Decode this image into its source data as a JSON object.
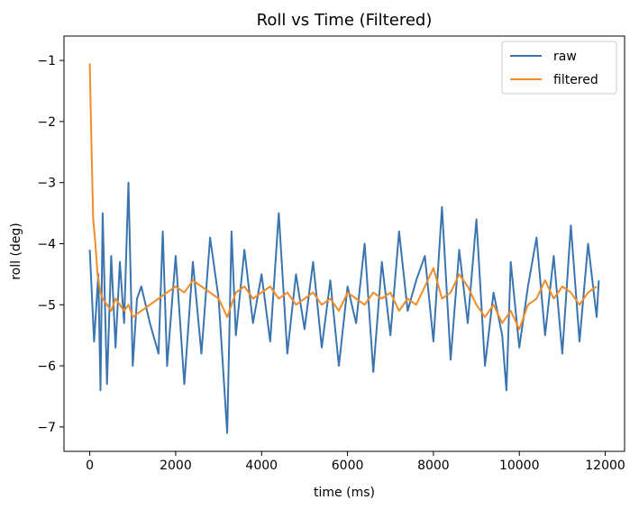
{
  "chart_data": {
    "type": "line",
    "title": "Roll vs Time (Filtered)",
    "xlabel": "time (ms)",
    "ylabel": "roll (deg)",
    "xlim": [
      -600,
      12450
    ],
    "ylim": [
      -7.4,
      -0.6
    ],
    "xticks": [
      0,
      2000,
      4000,
      6000,
      8000,
      10000,
      12000
    ],
    "xtick_labels": [
      "0",
      "2000",
      "4000",
      "6000",
      "8000",
      "10000",
      "12000"
    ],
    "yticks": [
      -1,
      -2,
      -3,
      -4,
      -5,
      -6,
      -7
    ],
    "ytick_labels": [
      "−1",
      "−2",
      "−3",
      "−4",
      "−5",
      "−6",
      "−7"
    ],
    "grid": false,
    "legend_position": "top-right",
    "series": [
      {
        "name": "raw",
        "color": "#3b75af",
        "x": [
          0,
          100,
          200,
          250,
          300,
          400,
          500,
          600,
          700,
          800,
          900,
          1000,
          1100,
          1200,
          1400,
          1600,
          1700,
          1800,
          2000,
          2200,
          2400,
          2600,
          2800,
          3000,
          3200,
          3300,
          3400,
          3600,
          3800,
          4000,
          4200,
          4400,
          4600,
          4800,
          5000,
          5200,
          5400,
          5600,
          5800,
          6000,
          6200,
          6400,
          6600,
          6800,
          7000,
          7200,
          7400,
          7600,
          7800,
          8000,
          8200,
          8400,
          8600,
          8800,
          9000,
          9200,
          9400,
          9600,
          9700,
          9800,
          10000,
          10200,
          10400,
          10600,
          10800,
          11000,
          11200,
          11400,
          11600,
          11800,
          11850
        ],
        "values": [
          -4.1,
          -5.6,
          -4.5,
          -6.4,
          -3.5,
          -6.3,
          -4.2,
          -5.7,
          -4.3,
          -5.3,
          -3.0,
          -6.0,
          -4.9,
          -4.7,
          -5.3,
          -5.8,
          -3.8,
          -6.0,
          -4.2,
          -6.3,
          -4.3,
          -5.8,
          -3.9,
          -4.9,
          -7.1,
          -3.8,
          -5.5,
          -4.1,
          -5.3,
          -4.5,
          -5.6,
          -3.5,
          -5.8,
          -4.5,
          -5.4,
          -4.3,
          -5.7,
          -4.6,
          -6.0,
          -4.7,
          -5.3,
          -4.0,
          -6.1,
          -4.3,
          -5.5,
          -3.8,
          -5.1,
          -4.6,
          -4.2,
          -5.6,
          -3.4,
          -5.9,
          -4.1,
          -5.3,
          -3.6,
          -6.0,
          -4.8,
          -5.5,
          -6.4,
          -4.3,
          -5.7,
          -4.7,
          -3.9,
          -5.5,
          -4.2,
          -5.8,
          -3.7,
          -5.6,
          -4.0,
          -5.2,
          -4.6
        ]
      },
      {
        "name": "filtered",
        "color": "#f28c28",
        "x": [
          0,
          40,
          80,
          130,
          180,
          250,
          300,
          400,
          500,
          600,
          700,
          800,
          900,
          1000,
          1200,
          1400,
          1600,
          1800,
          2000,
          2200,
          2400,
          2600,
          2800,
          3000,
          3200,
          3400,
          3600,
          3800,
          4000,
          4200,
          4400,
          4600,
          4800,
          5000,
          5200,
          5400,
          5600,
          5800,
          6000,
          6200,
          6400,
          6600,
          6800,
          7000,
          7200,
          7400,
          7600,
          7800,
          8000,
          8200,
          8400,
          8600,
          8800,
          9000,
          9200,
          9400,
          9600,
          9800,
          10000,
          10200,
          10400,
          10600,
          10800,
          11000,
          11200,
          11400,
          11600,
          11800
        ],
        "values": [
          -1.05,
          -2.4,
          -3.6,
          -4.0,
          -4.5,
          -4.8,
          -4.9,
          -5.0,
          -5.1,
          -4.9,
          -5.0,
          -5.1,
          -5.0,
          -5.2,
          -5.1,
          -5.0,
          -4.9,
          -4.8,
          -4.7,
          -4.8,
          -4.6,
          -4.7,
          -4.8,
          -4.9,
          -5.2,
          -4.8,
          -4.7,
          -4.9,
          -4.8,
          -4.7,
          -4.9,
          -4.8,
          -5.0,
          -4.9,
          -4.8,
          -5.0,
          -4.9,
          -5.1,
          -4.8,
          -4.9,
          -5.0,
          -4.8,
          -4.9,
          -4.8,
          -5.1,
          -4.9,
          -5.0,
          -4.7,
          -4.4,
          -4.9,
          -4.8,
          -4.5,
          -4.7,
          -5.0,
          -5.2,
          -5.0,
          -5.3,
          -5.1,
          -5.4,
          -5.0,
          -4.9,
          -4.6,
          -4.9,
          -4.7,
          -4.8,
          -5.0,
          -4.8,
          -4.7
        ]
      }
    ]
  }
}
